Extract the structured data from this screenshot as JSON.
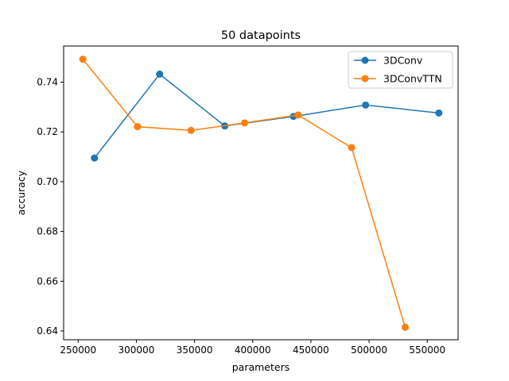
{
  "chart_data": {
    "type": "line",
    "title": "50 datapoints",
    "xlabel": "parameters",
    "ylabel": "accuracy",
    "xlim": [
      237500,
      576500
    ],
    "ylim": [
      0.6365,
      0.7545
    ],
    "xticks": [
      250000,
      300000,
      350000,
      400000,
      450000,
      500000,
      550000
    ],
    "yticks": [
      0.64,
      0.66,
      0.68,
      0.7,
      0.72,
      0.74
    ],
    "xtick_labels": [
      "250000",
      "300000",
      "350000",
      "400000",
      "450000",
      "500000",
      "550000"
    ],
    "ytick_labels": [
      "0.64",
      "0.66",
      "0.68",
      "0.70",
      "0.72",
      "0.74"
    ],
    "legend_position": "top-right",
    "grid": false,
    "series": [
      {
        "name": "3DConv",
        "color": "#1f77b4",
        "x": [
          264000,
          320000,
          376000,
          435000,
          497000,
          560000
        ],
        "y": [
          0.7095,
          0.7432,
          0.7224,
          0.7262,
          0.7308,
          0.7276
        ]
      },
      {
        "name": "3DConvTTN",
        "color": "#ff7f0e",
        "x": [
          254000,
          301000,
          347000,
          393000,
          439000,
          485000,
          531000
        ],
        "y": [
          0.7492,
          0.7221,
          0.7206,
          0.7236,
          0.7268,
          0.7137,
          0.6415
        ]
      }
    ]
  }
}
